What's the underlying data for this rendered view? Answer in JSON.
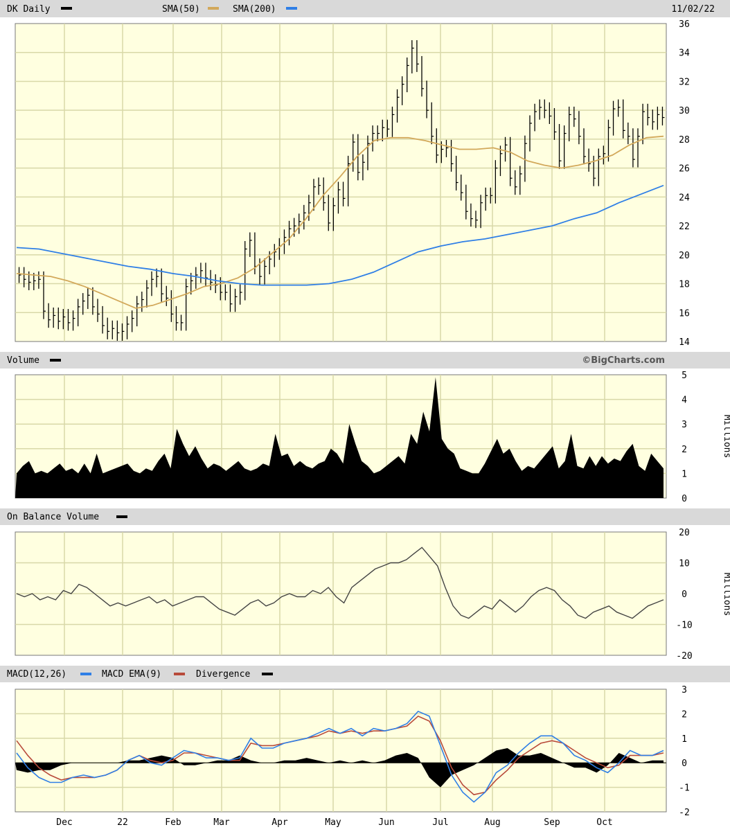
{
  "colors": {
    "panel_bg": "#ffffe0",
    "header_bg": "#d9d9d9",
    "grid": "#d8d8a8",
    "price": "#000000",
    "sma50": "#d2a85a",
    "sma200": "#2f7fe6",
    "macd": "#2f7fe6",
    "macd_ema": "#b84a3a",
    "divergence": "#000000"
  },
  "header": {
    "ticker_label": "DK Daily",
    "sma50_label": "SMA(50)",
    "sma200_label": "SMA(200)",
    "date": "11/02/22"
  },
  "panels": {
    "volume_label": "Volume",
    "watermark": "©BigCharts.com",
    "obv_label": "On Balance Volume",
    "macd_label": "MACD(12,26)",
    "macd_ema_label": "MACD EMA(9)",
    "divergence_label": "Divergence",
    "millions_label": "Millions"
  },
  "chart_data": [
    {
      "type": "line",
      "panel": "price",
      "x_ticks": [
        "Dec",
        "22",
        "Feb",
        "Mar",
        "Apr",
        "May",
        "Jun",
        "Jul",
        "Aug",
        "Sep",
        "Oct"
      ],
      "ylim": [
        14,
        36
      ],
      "y_ticks": [
        "14",
        "16",
        "18",
        "20",
        "22",
        "24",
        "26",
        "28",
        "30",
        "32",
        "34",
        "36"
      ],
      "series": [
        {
          "name": "DK Daily",
          "style": "bars",
          "values": [
            18.6,
            18.3,
            18.1,
            18.2,
            18.3,
            16.1,
            15.5,
            15.8,
            15.4,
            15.7,
            15.3,
            15.6,
            16.4,
            16.8,
            17.2,
            16.4,
            15.9,
            15.1,
            14.7,
            14.9,
            14.6,
            14.7,
            15.2,
            15.6,
            16.6,
            16.9,
            17.7,
            18.3,
            18.5,
            17.3,
            17.0,
            15.9,
            15.3,
            15.3,
            17.8,
            18.2,
            18.6,
            18.9,
            18.4,
            18.1,
            17.9,
            17.4,
            17.4,
            16.6,
            17.1,
            17.4,
            20.4,
            21.0,
            19.2,
            18.5,
            19.2,
            19.7,
            20.2,
            20.6,
            21.2,
            21.8,
            22.0,
            22.3,
            22.9,
            23.6,
            24.7,
            24.8,
            23.6,
            22.2,
            23.4,
            24.5,
            23.9,
            26.3,
            27.8,
            25.7,
            26.4,
            27.7,
            28.4,
            28.4,
            28.8,
            28.7,
            29.7,
            30.9,
            31.8,
            33.1,
            34.3,
            33.2,
            31.5,
            30.0,
            28.2,
            26.9,
            27.3,
            27.4,
            26.3,
            25.0,
            24.3,
            23.0,
            22.5,
            22.4,
            23.6,
            24.1,
            24.1,
            26.0,
            27.0,
            27.6,
            25.3,
            24.7,
            25.6,
            27.7,
            29.1,
            29.9,
            30.2,
            30.0,
            29.6,
            28.5,
            26.5,
            28.4,
            29.7,
            29.4,
            28.2,
            26.8,
            26.3,
            25.3,
            26.8,
            27.0,
            28.8,
            30.1,
            30.2,
            28.6,
            28.2,
            26.6,
            28.2,
            29.9,
            29.5,
            29.2,
            29.7,
            29.5
          ]
        },
        {
          "name": "SMA(50)",
          "values": [
            18.7,
            18.6,
            18.5,
            18.2,
            17.8,
            17.3,
            16.8,
            16.3,
            16.5,
            16.9,
            17.3,
            17.8,
            18.0,
            18.4,
            19.1,
            20.1,
            21.1,
            22.5,
            24.1,
            25.4,
            26.8,
            27.9,
            28.1,
            28.1,
            27.9,
            27.6,
            27.3,
            27.3,
            27.4,
            27.1,
            26.5,
            26.2,
            26.0,
            26.2,
            26.5,
            26.9,
            27.6,
            28.1,
            28.2
          ]
        },
        {
          "name": "SMA(200)",
          "values": [
            20.5,
            20.4,
            20.1,
            19.8,
            19.5,
            19.2,
            19.0,
            18.7,
            18.5,
            18.2,
            18.0,
            17.9,
            17.9,
            17.9,
            18.0,
            18.3,
            18.8,
            19.5,
            20.2,
            20.6,
            20.9,
            21.1,
            21.4,
            21.7,
            22.0,
            22.5,
            22.9,
            23.6,
            24.2,
            24.8
          ]
        }
      ]
    },
    {
      "type": "area",
      "panel": "volume",
      "ylim": [
        0,
        5
      ],
      "y_ticks": [
        "0",
        "1",
        "2",
        "3",
        "4",
        "5"
      ],
      "series": [
        {
          "name": "Volume",
          "values": [
            1.0,
            1.3,
            1.5,
            1.0,
            1.1,
            1.0,
            1.2,
            1.4,
            1.1,
            1.2,
            1.0,
            1.4,
            1.0,
            1.8,
            1.0,
            1.1,
            1.2,
            1.3,
            1.4,
            1.1,
            1.0,
            1.2,
            1.1,
            1.5,
            1.8,
            1.2,
            2.8,
            2.2,
            1.7,
            2.1,
            1.6,
            1.2,
            1.4,
            1.3,
            1.1,
            1.3,
            1.5,
            1.2,
            1.1,
            1.2,
            1.4,
            1.3,
            2.6,
            1.7,
            1.8,
            1.3,
            1.5,
            1.3,
            1.2,
            1.4,
            1.5,
            2.0,
            1.8,
            1.4,
            3.0,
            2.2,
            1.5,
            1.3,
            1.0,
            1.1,
            1.3,
            1.5,
            1.7,
            1.4,
            2.6,
            2.2,
            3.5,
            2.7,
            4.9,
            2.4,
            2.0,
            1.8,
            1.2,
            1.1,
            1.0,
            1.0,
            1.4,
            1.9,
            2.4,
            1.8,
            2.0,
            1.5,
            1.1,
            1.3,
            1.2,
            1.5,
            1.8,
            2.1,
            1.2,
            1.5,
            2.6,
            1.3,
            1.2,
            1.7,
            1.3,
            1.7,
            1.4,
            1.6,
            1.5,
            1.9,
            2.2,
            1.3,
            1.1,
            1.8,
            1.5,
            1.2
          ]
        }
      ]
    },
    {
      "type": "line",
      "panel": "on_balance_volume",
      "ylim": [
        -20,
        20
      ],
      "y_ticks": [
        "-20",
        "-10",
        "0",
        "10",
        "20"
      ],
      "series": [
        {
          "name": "On Balance Volume",
          "values": [
            0,
            -1,
            0,
            -2,
            -1,
            -2,
            1,
            0,
            3,
            2,
            0,
            -2,
            -4,
            -3,
            -4,
            -3,
            -2,
            -1,
            -3,
            -2,
            -4,
            -3,
            -2,
            -1,
            -1,
            -3,
            -5,
            -6,
            -7,
            -5,
            -3,
            -2,
            -4,
            -3,
            -1,
            0,
            -1,
            -1,
            1,
            0,
            2,
            -1,
            -3,
            2,
            4,
            6,
            8,
            9,
            10,
            10,
            11,
            13,
            15,
            12,
            9,
            2,
            -4,
            -7,
            -8,
            -6,
            -4,
            -5,
            -2,
            -4,
            -6,
            -4,
            -1,
            1,
            2,
            1,
            -2,
            -4,
            -7,
            -8,
            -6,
            -5,
            -4,
            -6,
            -7,
            -8,
            -6,
            -4,
            -3,
            -2
          ]
        }
      ]
    },
    {
      "type": "line",
      "panel": "macd",
      "ylim": [
        -2,
        3
      ],
      "y_ticks": [
        "-2",
        "-1",
        "0",
        "1",
        "2",
        "3"
      ],
      "series": [
        {
          "name": "MACD(12,26)",
          "values": [
            0.4,
            -0.2,
            -0.6,
            -0.8,
            -0.8,
            -0.6,
            -0.5,
            -0.6,
            -0.5,
            -0.3,
            0.1,
            0.3,
            0.0,
            -0.1,
            0.2,
            0.5,
            0.4,
            0.2,
            0.2,
            0.1,
            0.2,
            1.0,
            0.6,
            0.6,
            0.8,
            0.9,
            1.0,
            1.2,
            1.4,
            1.2,
            1.4,
            1.1,
            1.4,
            1.3,
            1.4,
            1.6,
            2.1,
            1.9,
            0.7,
            -0.5,
            -1.2,
            -1.6,
            -1.2,
            -0.4,
            -0.1,
            0.4,
            0.8,
            1.1,
            1.1,
            0.8,
            0.3,
            0.1,
            -0.2,
            -0.4,
            0.0,
            0.5,
            0.3,
            0.3,
            0.5
          ]
        },
        {
          "name": "MACD EMA(9)",
          "values": [
            0.9,
            0.3,
            -0.2,
            -0.5,
            -0.7,
            -0.6,
            -0.6,
            -0.6,
            -0.5,
            -0.3,
            0.1,
            0.3,
            0.1,
            0.0,
            0.1,
            0.4,
            0.4,
            0.3,
            0.2,
            0.1,
            0.1,
            0.8,
            0.7,
            0.7,
            0.8,
            0.9,
            1.0,
            1.1,
            1.3,
            1.2,
            1.3,
            1.2,
            1.3,
            1.3,
            1.4,
            1.5,
            1.9,
            1.7,
            0.9,
            -0.2,
            -0.9,
            -1.3,
            -1.2,
            -0.7,
            -0.3,
            0.2,
            0.5,
            0.8,
            0.9,
            0.8,
            0.5,
            0.2,
            0.0,
            -0.2,
            -0.1,
            0.3,
            0.3,
            0.3,
            0.4
          ]
        },
        {
          "name": "Divergence",
          "style": "area",
          "values": [
            -0.3,
            -0.4,
            -0.3,
            -0.3,
            -0.1,
            0.0,
            0.0,
            0.0,
            0.0,
            0.0,
            0.1,
            0.1,
            0.2,
            0.3,
            0.2,
            -0.1,
            -0.1,
            0.0,
            0.1,
            0.1,
            0.3,
            0.1,
            0.0,
            0.0,
            0.1,
            0.1,
            0.2,
            0.1,
            0.0,
            0.1,
            0.0,
            0.1,
            0.0,
            0.1,
            0.3,
            0.4,
            0.2,
            -0.6,
            -1.0,
            -0.5,
            -0.3,
            -0.1,
            0.2,
            0.5,
            0.6,
            0.3,
            0.3,
            0.4,
            0.2,
            0.0,
            -0.2,
            -0.2,
            -0.4,
            -0.1,
            0.4,
            0.2,
            0.0,
            0.1,
            0.1
          ]
        }
      ]
    }
  ]
}
